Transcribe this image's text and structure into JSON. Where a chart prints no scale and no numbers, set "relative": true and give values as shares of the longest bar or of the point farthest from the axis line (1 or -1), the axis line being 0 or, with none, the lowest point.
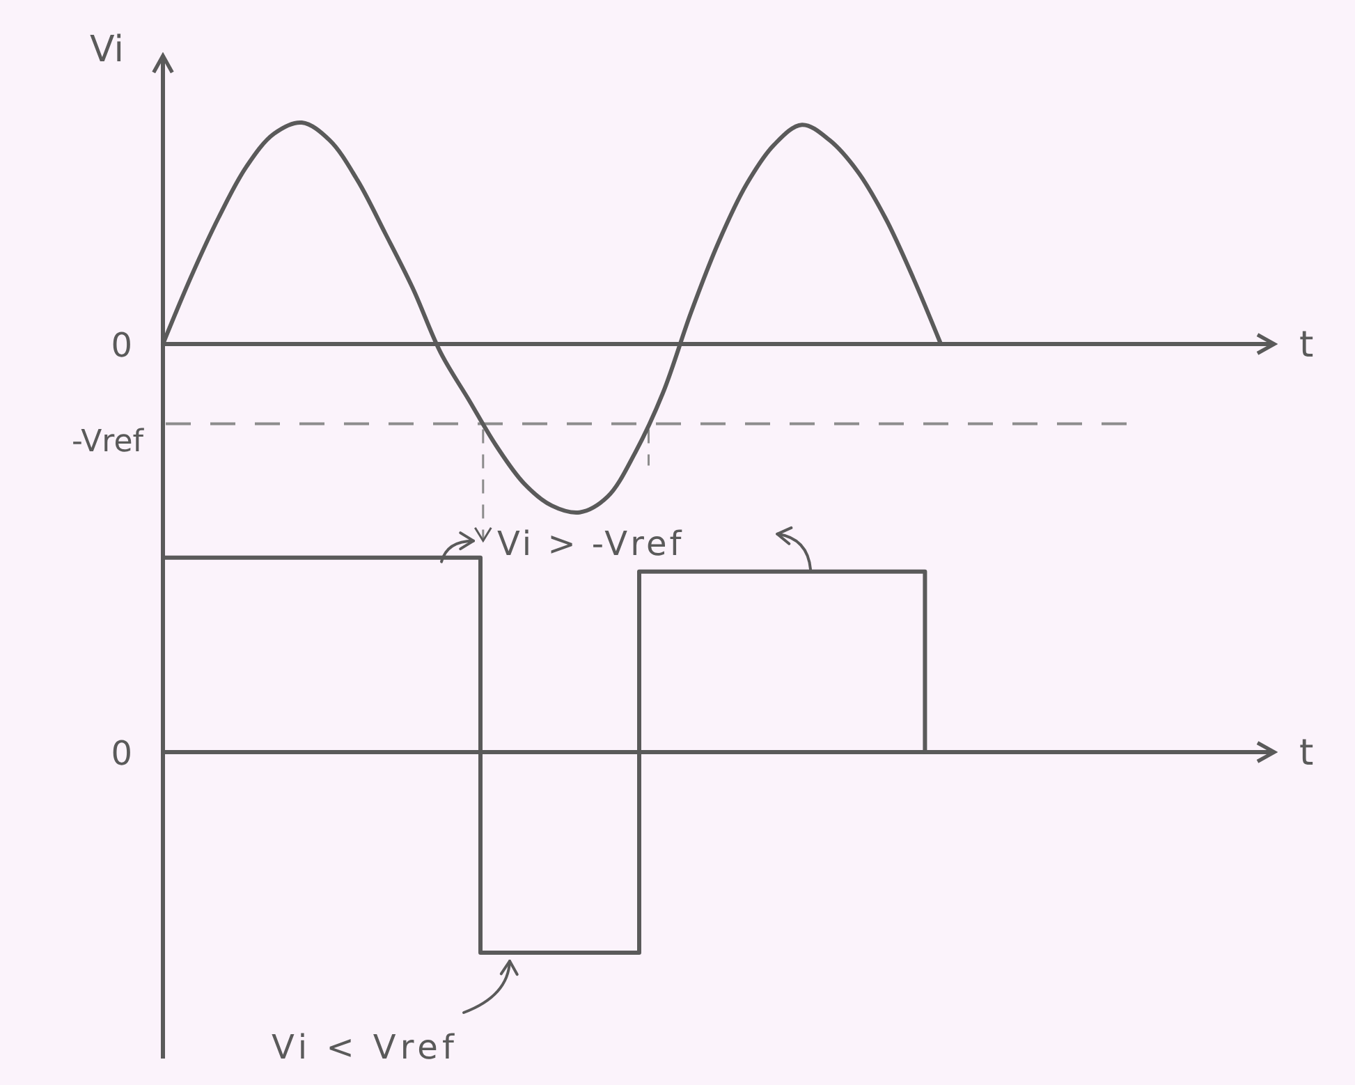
{
  "chart_data": [
    {
      "type": "line",
      "xlabel": "t",
      "ylabel": "Vi",
      "relative": true,
      "categories": [
        null,
        null,
        null,
        null,
        null,
        null,
        null,
        null,
        null,
        null,
        null,
        null,
        null,
        null,
        null,
        null,
        null,
        null,
        null,
        null,
        null,
        null,
        null,
        null,
        null,
        null,
        null,
        null,
        null,
        null,
        null,
        null,
        null,
        null,
        null,
        null,
        null,
        null,
        null,
        null,
        null
      ],
      "series": [
        {
          "color": "#5a5a5a",
          "values": [
            0,
            0.3,
            0.57,
            0.8,
            0.95,
            1,
            0.92,
            0.74,
            0.5,
            0.25,
            -0.04,
            -0.25,
            -0.46,
            -0.63,
            -0.73,
            -0.76,
            -0.69,
            -0.49,
            -0.22,
            0.14,
            0.46,
            0.72,
            0.9,
            0.99,
            0.92,
            0.78,
            0.57,
            0.3,
            0,
            null,
            null,
            null,
            null,
            null,
            null,
            null,
            null,
            null,
            null,
            null,
            null
          ]
        }
      ],
      "ref_lines": [
        {
          "axis": "y",
          "value": -0.36,
          "label": "-Vref",
          "line_style": "dashed",
          "color": "#8c8c8c"
        }
      ],
      "annotations": [
        "0"
      ]
    },
    {
      "type": "step",
      "xlabel": "t",
      "relative": true,
      "categories": [
        null,
        null,
        null,
        null,
        null,
        null,
        null,
        null,
        null,
        null,
        null,
        null,
        null,
        null,
        null,
        null,
        null,
        null,
        null,
        null,
        null,
        null,
        null,
        null,
        null,
        null,
        null,
        null,
        null,
        null,
        null,
        null,
        null,
        null,
        null,
        null
      ],
      "series": [
        {
          "color": "#5a5a5a",
          "values": [
            0.97,
            0.97,
            0.97,
            0.97,
            0.97,
            0.97,
            0.97,
            0.97,
            0.97,
            0.97,
            -1,
            -1,
            -1,
            -1,
            -1,
            0.9,
            0.9,
            0.9,
            0.9,
            0.9,
            0.9,
            0.9,
            0.9,
            0.9,
            0,
            null,
            null,
            null,
            null,
            null,
            null,
            null,
            null,
            null,
            null,
            null
          ]
        }
      ],
      "annotations": [
        "0",
        "Vi > -Vref",
        "Vi < Vref"
      ]
    }
  ]
}
